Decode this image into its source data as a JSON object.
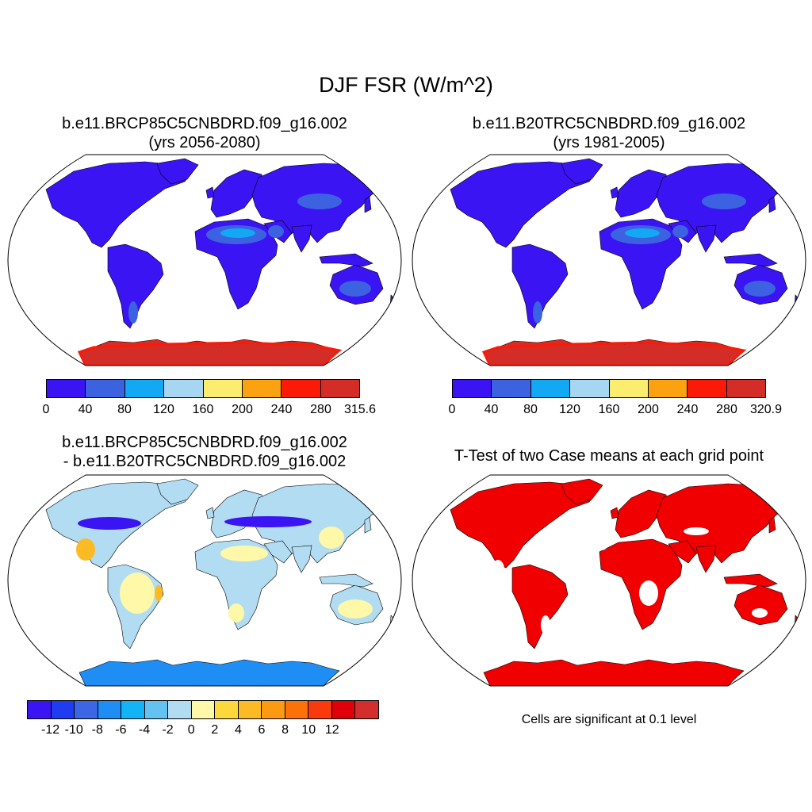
{
  "main_title": "DJF FSR (W/m^2)",
  "panels": {
    "top_left": {
      "title_line1": "b.e11.BRCP85C5CNBDRD.f09_g16.002",
      "title_line2": "(yrs 2056-2080)",
      "colorbar": {
        "colors": [
          "#3a14f2",
          "#3c62e2",
          "#12a8f4",
          "#a6d6f2",
          "#fced6e",
          "#fca210",
          "#fb1a08",
          "#d42c26"
        ],
        "tick_labels": [
          "0",
          "40",
          "80",
          "120",
          "160",
          "200",
          "240",
          "280",
          "315.6"
        ]
      }
    },
    "top_right": {
      "title_line1": "b.e11.B20TRC5CNBDRD.f09_g16.002",
      "title_line2": "(yrs 1981-2005)",
      "colorbar": {
        "colors": [
          "#3a14f2",
          "#3c62e2",
          "#12a8f4",
          "#a6d6f2",
          "#fced6e",
          "#fca210",
          "#fb1a08",
          "#d42c26"
        ],
        "tick_labels": [
          "0",
          "40",
          "80",
          "120",
          "160",
          "200",
          "240",
          "280",
          "320.9"
        ]
      }
    },
    "bottom_left": {
      "title_line1": "b.e11.BRCP85C5CNBDRD.f09_g16.002",
      "title_line2": "- b.e11.B20TRC5CNBDRD.f09_g16.002",
      "colorbar": {
        "colors": [
          "#3a14f2",
          "#1e3cf0",
          "#3c66e4",
          "#1e8ef4",
          "#12b4f6",
          "#64c2f0",
          "#b2dcf2",
          "#fff8a8",
          "#fcd83c",
          "#fcba24",
          "#fc9a12",
          "#fc7208",
          "#f83a0c",
          "#e0000a",
          "#d22e2c"
        ],
        "tick_labels": [
          "-12",
          "-10",
          "-8",
          "-6",
          "-4",
          "-2",
          "0",
          "2",
          "4",
          "6",
          "8",
          "10",
          "12"
        ]
      }
    },
    "bottom_right": {
      "title": "T-Test of two Case means at each grid point",
      "note": "Cells are significant at 0.1 level",
      "sig_color": "#f00000"
    }
  },
  "map_colors": {
    "land_low": "#3a14f2",
    "land_mid": "#3c62e2",
    "desert": "#12a8f4",
    "antarctica": "#d42c26",
    "antarctica_edge": "#fb1a08",
    "diff_light_blue": "#b2dcf2",
    "diff_yellow": "#fff8a8",
    "diff_orange": "#fcba24",
    "diff_dark_blue": "#3a14f2",
    "diff_mid_blue": "#1e8ef4"
  }
}
